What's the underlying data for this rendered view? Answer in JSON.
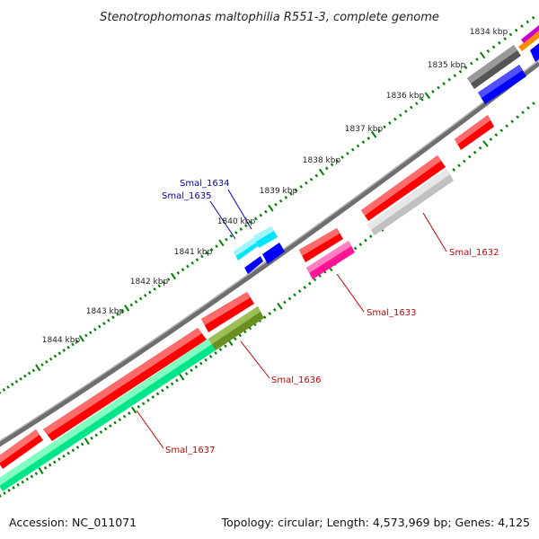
{
  "title": "Stenotrophomonas maltophilia R551-3, complete genome",
  "accession": "Accession: NC_011071",
  "stats": "Topology: circular; Length: 4,573,969 bp; Genes: 4,125",
  "ticks": [
    "1834 kbp",
    "1835 kbp",
    "1836 kbp",
    "1837 kbp",
    "1838 kbp",
    "1839 kbp",
    "1840 kbp",
    "1841 kbp",
    "1842 kbp",
    "1843 kbp",
    "1844 kbp"
  ],
  "gene_labels": {
    "smal_1632": "Smal_1632",
    "smal_1633": "Smal_1633",
    "smal_1634": "Smal_1634",
    "smal_1635": "Smal_1635",
    "smal_1636": "Smal_1636",
    "smal_1637": "Smal_1637"
  },
  "colors": {
    "red": "#ff0000",
    "pink": "#ff1493",
    "cyan": "#00e5ff",
    "blue": "#0000ff",
    "olive": "#6b8e23",
    "teal": "#00e58a",
    "gray": "#777777",
    "light_gray": "#c8c8c8",
    "dark_gray": "#555555",
    "backbone": "#8a8a8a",
    "tick": "#008000",
    "orange": "#ff8c00",
    "magenta": "#cc00cc"
  }
}
